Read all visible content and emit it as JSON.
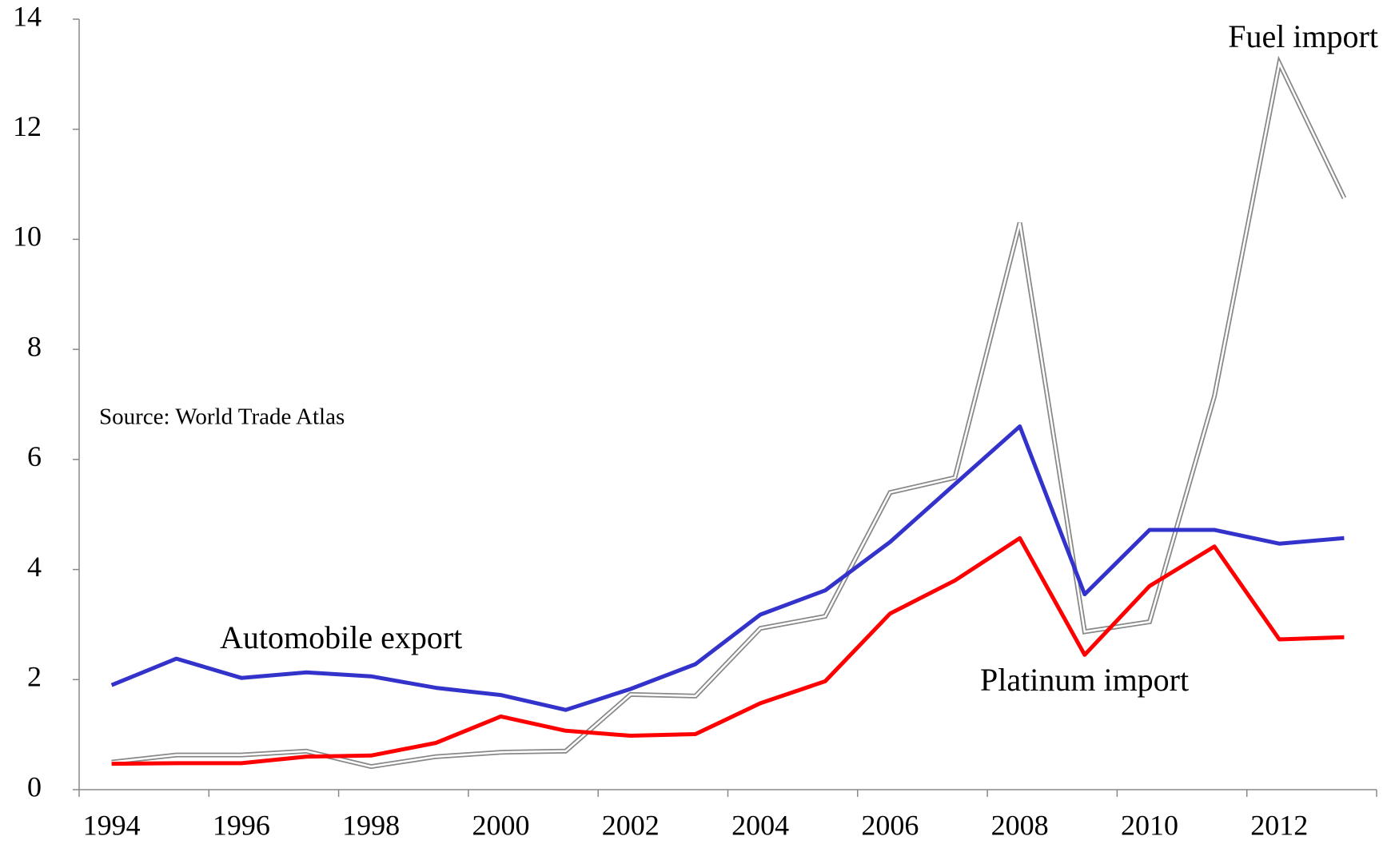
{
  "chart_data": {
    "type": "line",
    "annotations": [
      "Source: World Trade Atlas"
    ],
    "categories": [
      "1994",
      null,
      "1996",
      null,
      "1998",
      null,
      "2000",
      null,
      "2002",
      null,
      "2004",
      null,
      "2006",
      null,
      "2008",
      null,
      "2010",
      null,
      "2012",
      null
    ],
    "series": [
      {
        "name": "Automobile export",
        "color": "#3333cc",
        "values": [
          1.9,
          2.38,
          2.03,
          2.13,
          2.06,
          1.85,
          1.72,
          1.45,
          1.83,
          2.28,
          3.18,
          3.62,
          4.5,
          5.55,
          6.6,
          3.55,
          4.72,
          4.72,
          4.47,
          4.57
        ]
      },
      {
        "name": "Platinum import",
        "color": "#ff0000",
        "values": [
          0.47,
          0.48,
          0.48,
          0.6,
          0.62,
          0.85,
          1.33,
          1.07,
          0.98,
          1.01,
          1.57,
          1.97,
          3.2,
          3.8,
          4.57,
          2.45,
          3.7,
          4.42,
          2.73,
          2.77
        ]
      },
      {
        "name": "Fuel import",
        "color": "#888888",
        "values": [
          0.5,
          0.63,
          0.63,
          0.7,
          0.42,
          0.6,
          0.68,
          0.7,
          1.73,
          1.7,
          2.93,
          3.15,
          5.4,
          5.67,
          10.3,
          2.87,
          3.05,
          7.15,
          13.2,
          10.75
        ]
      }
    ],
    "ylim": [
      0,
      14
    ],
    "yticks": [
      0,
      2,
      4,
      6,
      8,
      10,
      12,
      14
    ],
    "grid": false
  }
}
